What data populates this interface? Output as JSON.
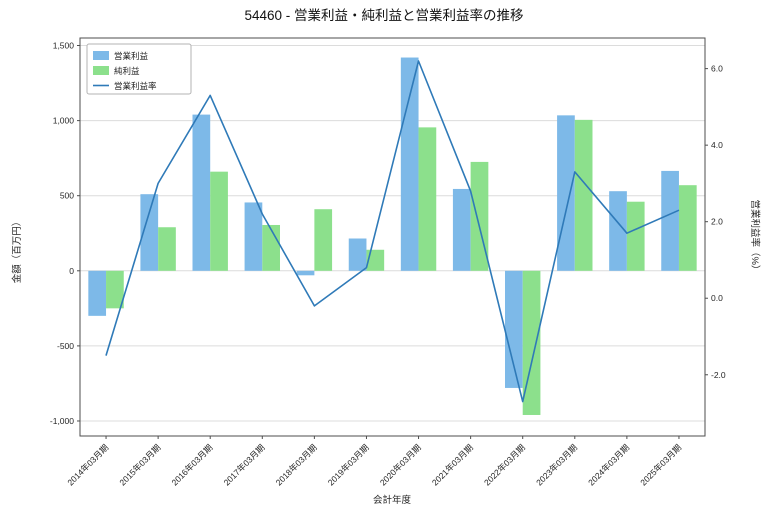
{
  "chart_data": {
    "type": "bar",
    "title": "54460 - 営業利益・純利益と営業利益率の推移",
    "xlabel": "会計年度",
    "ylabel_left": "金額（百万円）",
    "ylabel_right": "営業利益率（%）",
    "categories": [
      "2014年03月期",
      "2015年03月期",
      "2016年03月期",
      "2017年03月期",
      "2018年03月期",
      "2019年03月期",
      "2020年03月期",
      "2021年03月期",
      "2022年03月期",
      "2023年03月期",
      "2024年03月期",
      "2025年03月期"
    ],
    "series": [
      {
        "name": "営業利益",
        "kind": "bar",
        "axis": "left",
        "color": "#7db9e8",
        "values": [
          -300,
          510,
          1040,
          455,
          -30,
          215,
          1420,
          545,
          -780,
          1035,
          530,
          665
        ]
      },
      {
        "name": "純利益",
        "kind": "bar",
        "axis": "left",
        "color": "#8ce08c",
        "values": [
          -250,
          290,
          660,
          305,
          410,
          140,
          955,
          725,
          -960,
          1005,
          460,
          570
        ]
      },
      {
        "name": "営業利益率",
        "kind": "line",
        "axis": "right",
        "color": "#2f7ab8",
        "values": [
          -1.5,
          3.0,
          5.3,
          2.2,
          -0.2,
          0.8,
          6.2,
          2.8,
          -2.7,
          3.3,
          1.7,
          2.3
        ]
      }
    ],
    "left_axis": {
      "range": [
        -1100,
        1550
      ],
      "ticks": [
        1500,
        1000,
        500,
        0,
        -500,
        -1000
      ],
      "tick_labels": [
        "1,500",
        "1,000",
        "500",
        "0",
        "-500",
        "-1,000"
      ]
    },
    "right_axis": {
      "range": [
        -3.6,
        6.8
      ],
      "ticks": [
        6.0,
        4.0,
        2.0,
        0.0,
        -2.0
      ],
      "tick_labels": [
        "6.0",
        "4.0",
        "2.0",
        "0.0",
        "-2.0"
      ]
    },
    "grid": true,
    "legend_position": "upper left",
    "legend": [
      "営業利益",
      "純利益",
      "営業利益率"
    ]
  }
}
